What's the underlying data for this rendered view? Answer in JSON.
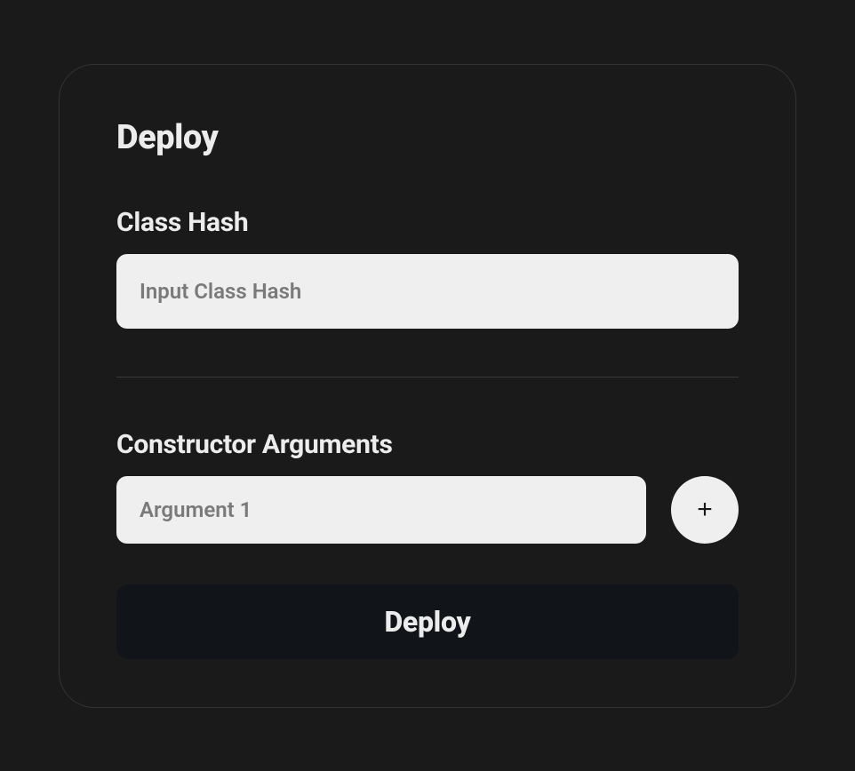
{
  "title": "Deploy",
  "classHash": {
    "label": "Class Hash",
    "placeholder": "Input Class Hash",
    "value": ""
  },
  "constructorArgs": {
    "label": "Constructor Arguments",
    "items": [
      {
        "placeholder": "Argument 1",
        "value": ""
      }
    ],
    "addLabel": "+"
  },
  "deployButton": {
    "label": "Deploy"
  },
  "colors": {
    "background": "#1a1a1a",
    "cardBorder": "#333333",
    "text": "#ececec",
    "inputBg": "#efefef",
    "placeholder": "#7a7a7a",
    "divider": "#3a3a3a",
    "buttonBg": "#111418"
  }
}
